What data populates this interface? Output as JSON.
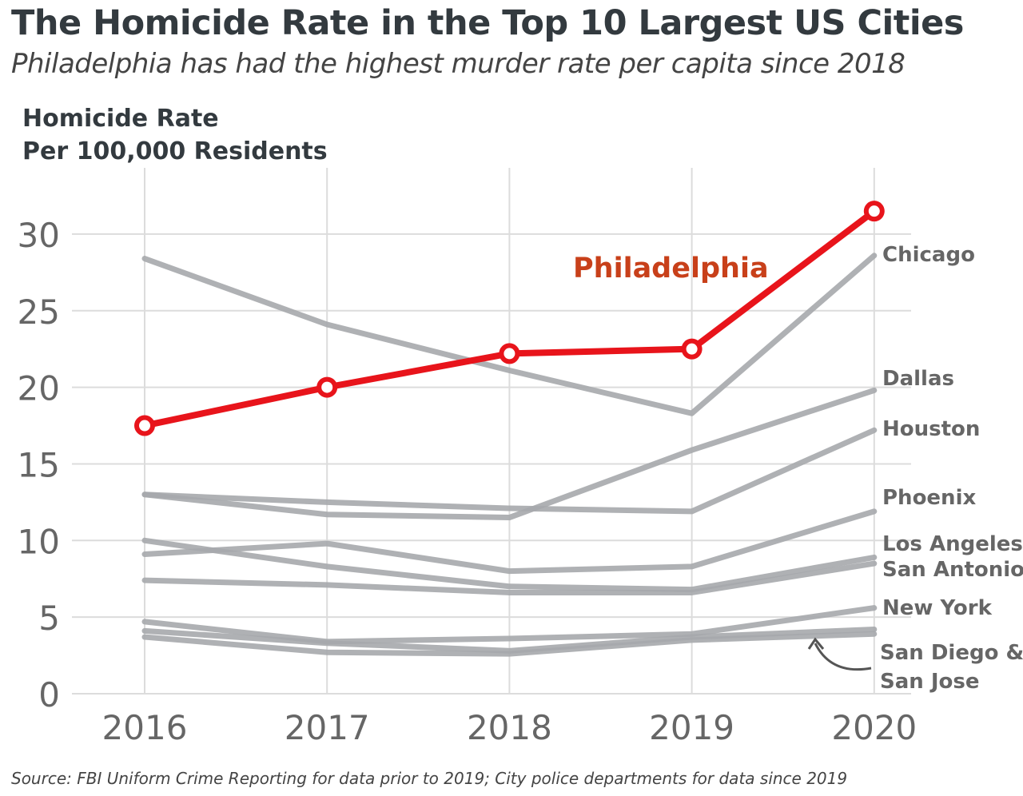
{
  "title": "The Homicide Rate in the Top 10 Largest US Cities",
  "subtitle": "Philadelphia has had the highest murder rate per capita since 2018",
  "source": "Source: FBI Uniform Crime Reporting for data prior to 2019; City police departments for data since 2019",
  "chart_data": {
    "type": "line",
    "title": "The Homicide Rate in the Top 10 Largest US Cities",
    "ylabel_line1": "Homicide Rate",
    "ylabel_line2": "Per 100,000 Residents",
    "xlabel": "",
    "x": [
      "2016",
      "2017",
      "2018",
      "2019",
      "2020"
    ],
    "yticks": [
      0,
      5,
      10,
      15,
      20,
      25,
      30
    ],
    "ylim": [
      0,
      31.5
    ],
    "grid": true,
    "highlight_color": "#e8141b",
    "highlight_label_color": "#c8401a",
    "other_color": "#a6a9ac",
    "series": [
      {
        "name": "Philadelphia",
        "values": [
          17.5,
          20.0,
          22.2,
          22.5,
          31.5
        ],
        "highlight": true
      },
      {
        "name": "Chicago",
        "values": [
          28.4,
          24.1,
          21.1,
          18.3,
          28.6
        ]
      },
      {
        "name": "Dallas",
        "values": [
          13.0,
          11.7,
          11.5,
          15.9,
          19.8
        ]
      },
      {
        "name": "Houston",
        "values": [
          13.0,
          12.5,
          12.1,
          11.9,
          17.2
        ]
      },
      {
        "name": "Phoenix",
        "values": [
          9.1,
          9.8,
          8.0,
          8.3,
          11.9
        ]
      },
      {
        "name": "Los Angeles",
        "values": [
          10.0,
          8.3,
          7.0,
          6.8,
          8.9
        ]
      },
      {
        "name": "San Antonio",
        "values": [
          7.4,
          7.1,
          6.6,
          6.6,
          8.5
        ]
      },
      {
        "name": "New York",
        "values": [
          4.7,
          3.4,
          3.6,
          3.9,
          5.6
        ]
      },
      {
        "name": "San Diego",
        "values": [
          4.1,
          3.3,
          2.8,
          3.7,
          4.2
        ]
      },
      {
        "name": "San Jose",
        "values": [
          3.7,
          2.7,
          2.6,
          3.5,
          3.9
        ]
      }
    ],
    "annotations": {
      "philadelphia": "Philadelphia",
      "chicago": "Chicago",
      "dallas": "Dallas",
      "houston": "Houston",
      "phoenix": "Phoenix",
      "los_angeles": "Los Angeles",
      "san_antonio": "San Antonio",
      "new_york": "New York",
      "san_diego_line1": "San Diego &",
      "san_diego_line2": "San Jose"
    }
  }
}
